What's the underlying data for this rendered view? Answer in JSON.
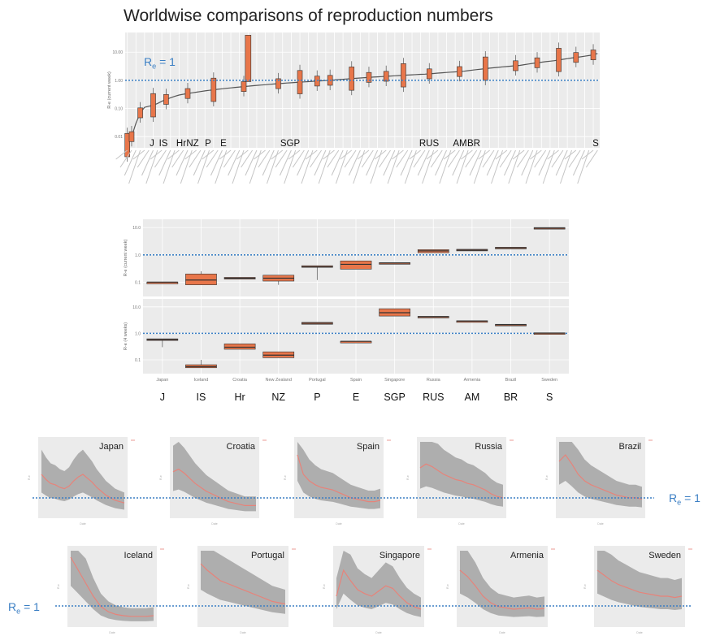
{
  "title": "Worldwise comparisons of reproduction numbers",
  "ref_label": "R",
  "ref_sub": "e",
  "ref_rest": " = 1",
  "chart_data": [
    {
      "type": "box",
      "panel": "top",
      "scale": "log",
      "ylabel": "R-e (current week)",
      "yticks": [
        "10.00",
        "1.00",
        "0.10",
        "0.01"
      ],
      "ylim": [
        0.004,
        50
      ],
      "reference_line": 1,
      "highlighted_labels": [
        "J",
        "IS",
        "Hr",
        "NZ",
        "P",
        "E",
        "SGP",
        "RUS",
        "AM",
        "BR",
        "S"
      ],
      "n_countries": 110,
      "medians": [
        0.005,
        0.01,
        0.03,
        0.07,
        0.11,
        0.12,
        0.13,
        0.15,
        0.18,
        0.21,
        0.24,
        0.27,
        0.3,
        0.32,
        0.34,
        0.36,
        0.38,
        0.4,
        0.42,
        0.44,
        0.46,
        0.48,
        0.5,
        0.52,
        0.54,
        0.56,
        0.58,
        0.6,
        0.62,
        0.64,
        0.66,
        0.68,
        0.7,
        0.72,
        0.74,
        0.76,
        0.78,
        0.8,
        0.82,
        0.84,
        0.86,
        0.88,
        0.9,
        0.92,
        0.94,
        0.96,
        0.98,
        1.0,
        1.03,
        1.06,
        1.09,
        1.12,
        1.15,
        1.18,
        1.21,
        1.24,
        1.27,
        1.3,
        1.33,
        1.36,
        1.39,
        1.42,
        1.45,
        1.48,
        1.51,
        1.54,
        1.57,
        1.6,
        1.63,
        1.66,
        1.7,
        1.75,
        1.8,
        1.85,
        1.9,
        1.95,
        2.0,
        2.05,
        2.1,
        2.2,
        2.3,
        2.4,
        2.5,
        2.6,
        2.7,
        2.8,
        2.9,
        3.0,
        3.1,
        3.2,
        3.3,
        3.4,
        3.6,
        3.8,
        4.0,
        4.2,
        4.4,
        4.6,
        4.8,
        5.0,
        5.3,
        5.6,
        5.9,
        6.2,
        6.5,
        6.8,
        7.2,
        7.6,
        8.0,
        9.0
      ]
    },
    {
      "type": "box",
      "panel": "middle-upper",
      "scale": "log",
      "ylabel": "R-e (current week)",
      "yticks": [
        "10.0",
        "1.0",
        "0.1"
      ],
      "ylim": [
        0.03,
        20
      ],
      "reference_line": 1,
      "categories": [
        "J",
        "IS",
        "Hr",
        "NZ",
        "P",
        "E",
        "SGP",
        "RUS",
        "AM",
        "BR",
        "S"
      ],
      "boxes": [
        {
          "q1": 0.1,
          "median": 0.1,
          "q3": 0.1,
          "low": 0.1,
          "high": 0.1
        },
        {
          "q1": 0.08,
          "median": 0.12,
          "q3": 0.2,
          "low": 0.08,
          "high": 0.25
        },
        {
          "q1": 0.13,
          "median": 0.14,
          "q3": 0.15,
          "low": 0.13,
          "high": 0.15
        },
        {
          "q1": 0.11,
          "median": 0.14,
          "q3": 0.18,
          "low": 0.08,
          "high": 0.18
        },
        {
          "q1": 0.35,
          "median": 0.37,
          "q3": 0.4,
          "low": 0.12,
          "high": 0.4
        },
        {
          "q1": 0.3,
          "median": 0.45,
          "q3": 0.6,
          "low": 0.3,
          "high": 0.6
        },
        {
          "q1": 0.5,
          "median": 0.5,
          "q3": 0.52,
          "low": 0.5,
          "high": 0.52
        },
        {
          "q1": 1.2,
          "median": 1.4,
          "q3": 1.55,
          "low": 1.2,
          "high": 1.55
        },
        {
          "q1": 1.45,
          "median": 1.5,
          "q3": 1.6,
          "low": 1.45,
          "high": 1.6
        },
        {
          "q1": 1.7,
          "median": 1.8,
          "q3": 1.9,
          "low": 1.7,
          "high": 1.9
        },
        {
          "q1": 9.0,
          "median": 9.5,
          "q3": 10.0,
          "low": 9.0,
          "high": 10.0
        }
      ]
    },
    {
      "type": "box",
      "panel": "middle-lower",
      "scale": "log",
      "ylabel": "R-e (4 weeks)",
      "yticks": [
        "10.0",
        "1.0",
        "0.1"
      ],
      "ylim": [
        0.03,
        20
      ],
      "reference_line": 1,
      "categories": [
        "J",
        "IS",
        "Hr",
        "NZ",
        "P",
        "E",
        "SGP",
        "RUS",
        "AM",
        "BR",
        "S"
      ],
      "tick_labels": [
        "Japan",
        "Iceland",
        "Croatia",
        "New Zealand",
        "Portugal",
        "Spain",
        "Singapore",
        "Russia",
        "Armenia",
        "Brazil",
        "Sweden"
      ],
      "boxes": [
        {
          "q1": 0.55,
          "median": 0.58,
          "q3": 0.62,
          "low": 0.3,
          "high": 0.62
        },
        {
          "q1": 0.05,
          "median": 0.055,
          "q3": 0.065,
          "low": 0.05,
          "high": 0.1
        },
        {
          "q1": 0.25,
          "median": 0.3,
          "q3": 0.4,
          "low": 0.25,
          "high": 0.4
        },
        {
          "q1": 0.12,
          "median": 0.15,
          "q3": 0.2,
          "low": 0.12,
          "high": 0.2
        },
        {
          "q1": 2.2,
          "median": 2.4,
          "q3": 2.6,
          "low": 2.2,
          "high": 2.6
        },
        {
          "q1": 0.5,
          "median": 0.5,
          "q3": 0.5,
          "low": 0.5,
          "high": 0.5
        },
        {
          "q1": 4.5,
          "median": 6.0,
          "q3": 8.5,
          "low": 4.5,
          "high": 8.5
        },
        {
          "q1": 4.0,
          "median": 4.2,
          "q3": 4.4,
          "low": 4.0,
          "high": 4.4
        },
        {
          "q1": 2.8,
          "median": 2.9,
          "q3": 3.0,
          "low": 2.8,
          "high": 3.0
        },
        {
          "q1": 2.0,
          "median": 2.1,
          "q3": 2.2,
          "low": 2.0,
          "high": 2.2
        },
        {
          "q1": 1.0,
          "median": 1.02,
          "q3": 1.05,
          "low": 1.0,
          "high": 1.05
        }
      ]
    },
    {
      "type": "line",
      "panel": "small-multiples",
      "reference_line": 1,
      "ylabel": "R-e",
      "xlabel": "Date",
      "panels": [
        {
          "name": "Japan",
          "values": [
            3.0,
            2.6,
            2.3,
            2.2,
            2.0,
            1.9,
            2.1,
            2.5,
            2.8,
            3.0,
            2.7,
            2.4,
            2.0,
            1.7,
            1.4,
            1.2,
            1.0,
            0.9,
            0.8
          ]
        },
        {
          "name": "Croatia",
          "values": [
            3.2,
            3.4,
            3.1,
            2.7,
            2.3,
            2.0,
            1.7,
            1.5,
            1.3,
            1.1,
            0.9,
            0.8,
            0.7,
            0.6,
            0.6,
            0.6
          ]
        },
        {
          "name": "Spain",
          "values": [
            4.5,
            3.0,
            2.5,
            2.2,
            2.0,
            1.9,
            1.8,
            1.6,
            1.4,
            1.2,
            1.1,
            1.0,
            0.9,
            0.9,
            1.0
          ]
        },
        {
          "name": "Russia",
          "values": [
            3.5,
            3.8,
            3.6,
            3.3,
            3.0,
            2.8,
            2.6,
            2.5,
            2.3,
            2.2,
            2.0,
            1.8,
            1.5,
            1.3,
            1.2
          ]
        },
        {
          "name": "Brazil",
          "values": [
            4.0,
            4.5,
            3.8,
            3.0,
            2.5,
            2.2,
            2.0,
            1.8,
            1.6,
            1.4,
            1.3,
            1.2,
            1.2,
            1.1
          ]
        },
        {
          "name": "Iceland",
          "values": [
            5.0,
            4.0,
            3.0,
            2.0,
            1.2,
            0.8,
            0.6,
            0.5,
            0.45,
            0.45,
            0.45,
            0.5
          ]
        },
        {
          "name": "Portugal",
          "values": [
            4.5,
            4.0,
            3.6,
            3.2,
            3.0,
            2.8,
            2.6,
            2.4,
            2.2,
            2.0,
            1.8,
            1.6,
            1.5,
            1.4
          ]
        },
        {
          "name": "Singapore",
          "values": [
            2.0,
            4.0,
            3.2,
            2.5,
            2.2,
            2.0,
            2.4,
            2.8,
            2.6,
            2.0,
            1.5,
            1.2,
            1.0
          ]
        },
        {
          "name": "Armenia",
          "values": [
            4.0,
            3.5,
            2.8,
            2.0,
            1.5,
            1.2,
            1.1,
            1.0,
            1.05,
            1.1,
            1.0,
            1.05
          ]
        },
        {
          "name": "Sweden",
          "values": [
            4.0,
            3.6,
            3.2,
            2.9,
            2.7,
            2.5,
            2.3,
            2.2,
            2.1,
            2.0,
            2.0,
            1.9,
            2.0
          ]
        }
      ]
    }
  ]
}
